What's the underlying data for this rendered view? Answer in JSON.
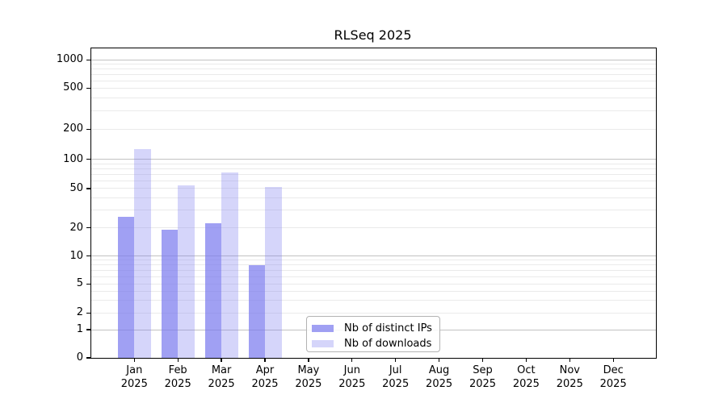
{
  "title": "RLSeq 2025",
  "colors": {
    "bar_distinct_ips": "rgba(124,124,238,0.72)",
    "bar_downloads": "rgba(124,124,238,0.32)",
    "grid_major": "#c2c2c2",
    "grid_minor": "#eaeaea",
    "axis": "#000000",
    "legend_border": "#b3b3b3"
  },
  "legend": {
    "items": [
      {
        "label": "Nb of distinct IPs",
        "color": "rgba(124,124,238,0.72)"
      },
      {
        "label": "Nb of downloads",
        "color": "rgba(124,124,238,0.32)"
      }
    ]
  },
  "x_axis": {
    "months": [
      "Jan",
      "Feb",
      "Mar",
      "Apr",
      "May",
      "Jun",
      "Jul",
      "Aug",
      "Sep",
      "Oct",
      "Nov",
      "Dec"
    ],
    "year": "2025"
  },
  "y_axis": {
    "tick_values": [
      0,
      1,
      2,
      5,
      10,
      20,
      50,
      100,
      200,
      500,
      1000
    ],
    "minor_values": [
      3,
      4,
      6,
      7,
      8,
      9,
      30,
      40,
      60,
      70,
      80,
      90,
      300,
      400,
      600,
      700,
      800,
      900
    ],
    "major_grid_values": [
      1,
      10,
      100,
      1000
    ]
  },
  "chart_data": {
    "type": "bar",
    "title": "RLSeq 2025",
    "categories": [
      "Jan 2025",
      "Feb 2025",
      "Mar 2025",
      "Apr 2025",
      "May 2025",
      "Jun 2025",
      "Jul 2025",
      "Aug 2025",
      "Sep 2025",
      "Oct 2025",
      "Nov 2025",
      "Dec 2025"
    ],
    "series": [
      {
        "name": "Nb of distinct IPs",
        "values": [
          26,
          19,
          22,
          8,
          0,
          0,
          0,
          0,
          0,
          0,
          0,
          0
        ]
      },
      {
        "name": "Nb of downloads",
        "values": [
          127,
          54,
          73,
          52,
          0,
          0,
          0,
          0,
          0,
          0,
          0,
          0
        ]
      }
    ],
    "xlabel": "",
    "ylabel": "",
    "yscale": "symlog",
    "yticks": [
      0,
      1,
      2,
      5,
      10,
      20,
      50,
      100,
      200,
      500,
      1000
    ],
    "ylim": [
      0,
      1100
    ],
    "grid": true,
    "legend_position": "lower center-left inside plot"
  }
}
